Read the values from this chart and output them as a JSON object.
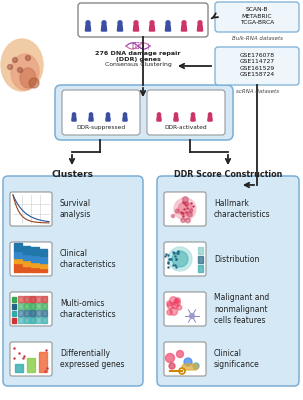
{
  "bg_color": "#ffffff",
  "border_blue": "#7aaed6",
  "panel_blue": "#d4e8f5",
  "bulk_rna_text": "SCAN-B\nMETABRIC\nTCGA-BRCA",
  "bulk_rna_label": "Bulk-RNA datasets",
  "scrna_text": "GSE176078\nGSE114727\nGSE161529\nGSE158724",
  "scrna_label": "scRNA datasets",
  "ddr_genes_text": "276 DNA damage repair\n(DDR) genes",
  "consensus_text": "Consensus Clustering",
  "ddr_suppressed": "DDR-suppressed",
  "ddr_activated": "DDR-activated",
  "clusters_title": "Clusters",
  "ddr_score_title": "DDR Score Construction",
  "clusters_items": [
    "Survival\nanalysis",
    "Clinical\ncharacteristics",
    "Multi-omics\ncharacteristics",
    "Differentially\nexpressed genes"
  ],
  "ddr_items": [
    "Hallmark\ncharacteristics",
    "Distribution",
    "Malignant and\nnonmalignant\ncells features",
    "Clinical\nsignificance"
  ],
  "blue_col": "#3a4fa3",
  "pink_col": "#cc3366",
  "fig_width": 3.03,
  "fig_height": 4.0,
  "dpi": 100
}
